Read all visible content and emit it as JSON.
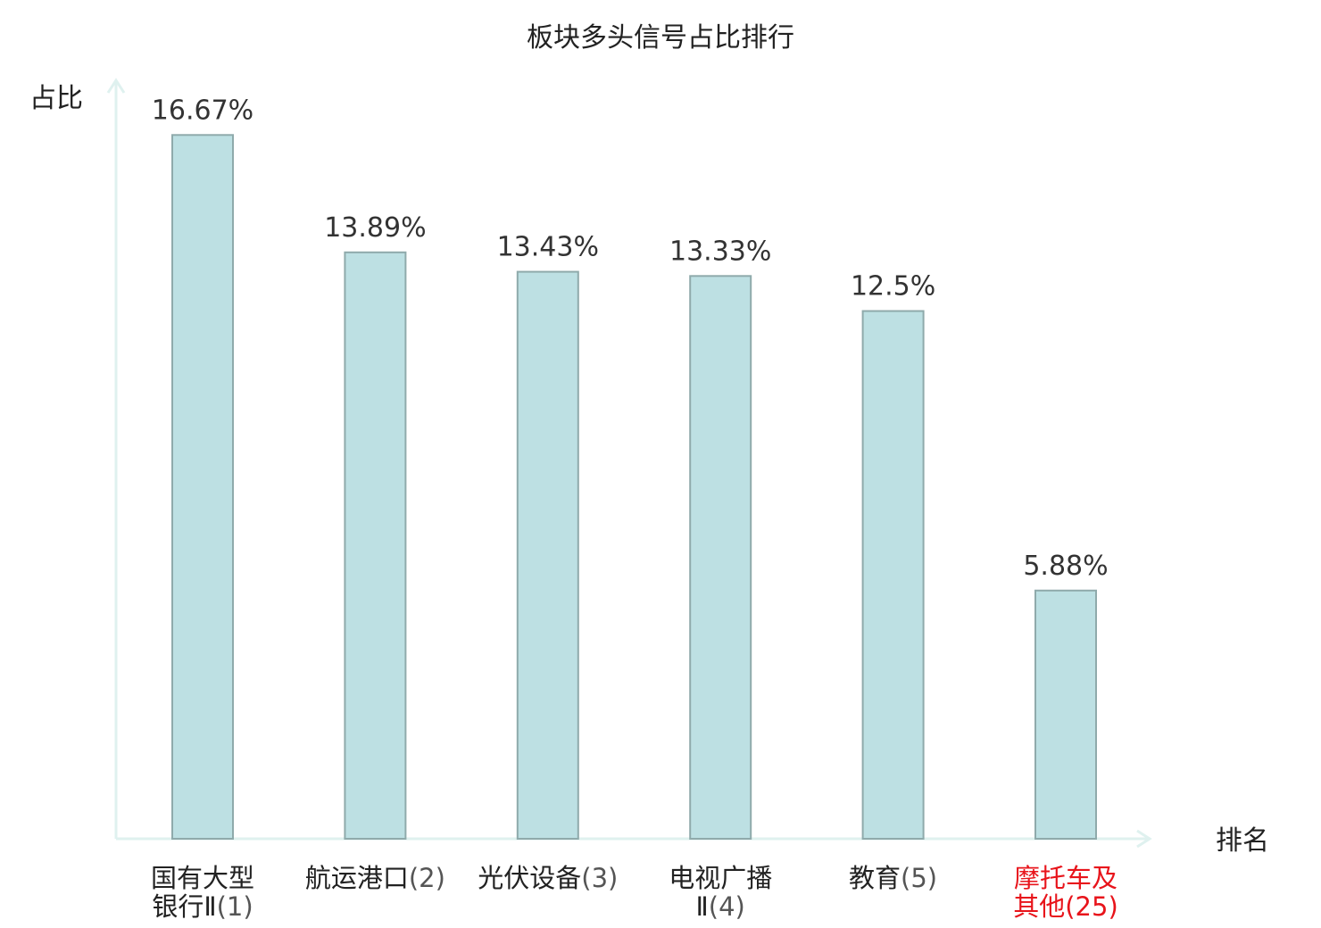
{
  "chart_data": {
    "type": "bar",
    "title": "板块多头信号占比排行",
    "ylabel": "占比",
    "xlabel": "排名",
    "ylim": [
      0,
      17.5
    ],
    "categories": [
      {
        "name": "国有大型银行Ⅱ",
        "rank": "(1)"
      },
      {
        "name": "航运港口",
        "rank": "(2)"
      },
      {
        "name": "光伏设备",
        "rank": "(3)"
      },
      {
        "name": "电视广播Ⅱ",
        "rank": "(4)"
      },
      {
        "name": "教育",
        "rank": "(5)"
      },
      {
        "name": "摩托车及其他",
        "rank": "(25)"
      }
    ],
    "values": [
      16.67,
      13.89,
      13.43,
      13.33,
      12.5,
      5.88
    ],
    "value_labels": [
      "16.67%",
      "13.89%",
      "13.43%",
      "13.33%",
      "12.5%",
      "5.88%"
    ],
    "highlight_index": 5,
    "colors": {
      "bar_fill": "#bde0e3",
      "bar_stroke": "#8faaab",
      "axis": "#dff1ef",
      "text": "#222222",
      "value_text": "#333333",
      "rank_text": "#555555",
      "highlight": "#e8141b"
    }
  }
}
